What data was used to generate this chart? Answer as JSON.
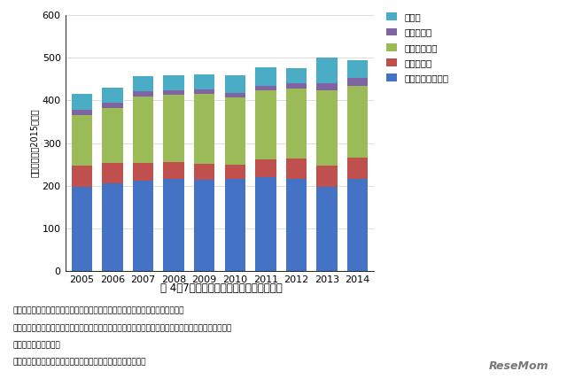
{
  "years": [
    2005,
    2006,
    2007,
    2008,
    2009,
    2010,
    2011,
    2012,
    2013,
    2014
  ],
  "govt_subsidy": [
    198,
    206,
    212,
    215,
    213,
    215,
    220,
    215,
    198,
    215
  ],
  "student_fees": [
    50,
    47,
    42,
    40,
    38,
    35,
    42,
    48,
    50,
    50
  ],
  "external_research": [
    118,
    130,
    155,
    158,
    165,
    157,
    162,
    165,
    175,
    170
  ],
  "donations": [
    12,
    12,
    12,
    10,
    10,
    10,
    10,
    12,
    18,
    18
  ],
  "others": [
    38,
    35,
    36,
    37,
    35,
    43,
    43,
    36,
    60,
    42
  ],
  "colors": {
    "govt_subsidy": "#4472C4",
    "student_fees": "#C0504D",
    "external_research": "#9BBB59",
    "donations": "#8064A2",
    "others": "#4BACC6"
  },
  "labels": {
    "govt_subsidy": "政府（州）補助金",
    "student_fees": "学生納付金",
    "external_research": "外部研究資金",
    "donations": "寄付・投資",
    "others": "その他"
  },
  "ylabel": "収入（億円、2015実購）",
  "ylim": [
    0,
    600
  ],
  "yticks": [
    0,
    100,
    200,
    300,
    400,
    500,
    600
  ],
  "title": "図 4〇7　東京工業大学の収入構成の推移",
  "note1": "注）国外大学と比較可能な費目で再集計したもの。計算の詳細は参考資料参照。",
  "note2": "　　物価調整をしているために名目値とは異なる（デフレーションの場合は過去にさかのぼるほど小さ",
  "note3": "　　く評価される。）",
  "source": "出所）東京工業大学財務諸表から株式会社三菱総合研究所作成",
  "bg_color": "#FFFFFF",
  "grid_color": "#D0D0D0",
  "resemom_text": "ReseMom"
}
